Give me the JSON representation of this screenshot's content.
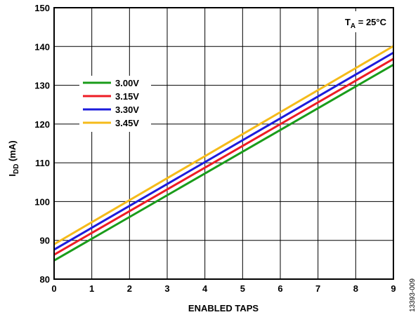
{
  "chart_data": {
    "type": "line",
    "xlabel": "ENABLED TAPS",
    "ylabel_main": "I",
    "ylabel_sub": "DD",
    "ylabel_unit": " (mA)",
    "xlim": [
      0,
      9
    ],
    "ylim": [
      80,
      150
    ],
    "x_ticks": [
      "0",
      "1",
      "2",
      "3",
      "4",
      "5",
      "6",
      "7",
      "8",
      "9"
    ],
    "y_ticks": [
      "80",
      "90",
      "100",
      "110",
      "120",
      "130",
      "140",
      "150"
    ],
    "grid": true,
    "legend_position": "left",
    "annotation": {
      "main": "T",
      "sub": "A",
      "rest": " = 25°C"
    },
    "figure_id": "13393-009",
    "series": [
      {
        "name": "3.00V",
        "color": "#1a9c1a",
        "x": [
          0,
          9
        ],
        "y": [
          84.8,
          135.3
        ]
      },
      {
        "name": "3.15V",
        "color": "#ee1c24",
        "x": [
          0,
          9
        ],
        "y": [
          86.3,
          136.8
        ]
      },
      {
        "name": "3.30V",
        "color": "#1c1cdc",
        "x": [
          0,
          9
        ],
        "y": [
          87.6,
          138.4
        ]
      },
      {
        "name": "3.45V",
        "color": "#f5bb1a",
        "x": [
          0,
          9
        ],
        "y": [
          89.0,
          140.1
        ]
      }
    ]
  }
}
